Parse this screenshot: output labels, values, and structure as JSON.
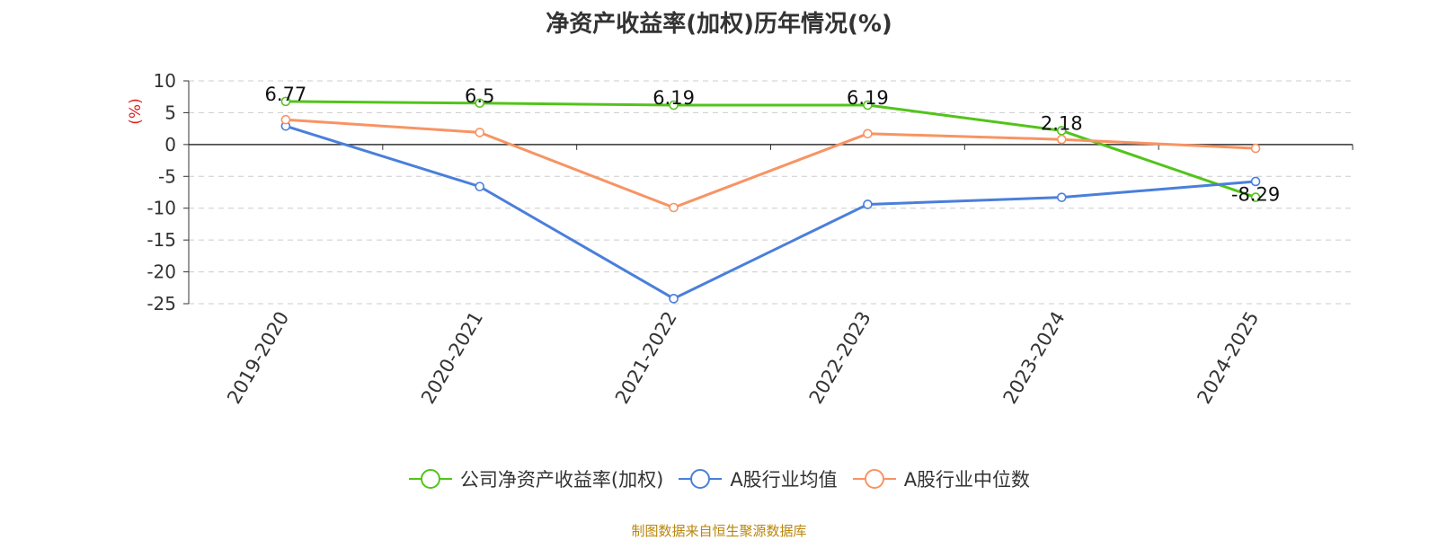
{
  "title": "净资产收益率(加权)历年情况(%)",
  "source": "制图数据来自恒生聚源数据库",
  "chart_data": {
    "type": "line",
    "title": "净资产收益率(加权)历年情况(%)",
    "ylabel": "(%)",
    "xlabel": "",
    "ylim": [
      -25,
      10
    ],
    "yticks": [
      10,
      5,
      0,
      -5,
      -10,
      -15,
      -20,
      -25
    ],
    "grid": true,
    "legend_position": "bottom",
    "categories": [
      "2019-2020",
      "2020-2021",
      "2021-2022",
      "2022-2023",
      "2023-2024",
      "2024-2025"
    ],
    "series": [
      {
        "name": "公司净资产收益率(加权)",
        "color": "#52c41a",
        "values": [
          6.77,
          6.5,
          6.19,
          6.19,
          2.18,
          -8.29
        ],
        "labels": [
          "6.77",
          "6.5",
          "6.19",
          "6.19",
          "2.18",
          "-8.29"
        ]
      },
      {
        "name": "A股行业均值",
        "color": "#4a7fdb",
        "values": [
          2.9,
          -6.6,
          -24.2,
          -9.4,
          -8.3,
          -5.8
        ]
      },
      {
        "name": "A股行业中位数",
        "color": "#f79464",
        "values": [
          3.9,
          1.9,
          -9.9,
          1.7,
          0.8,
          -0.6
        ]
      }
    ]
  }
}
